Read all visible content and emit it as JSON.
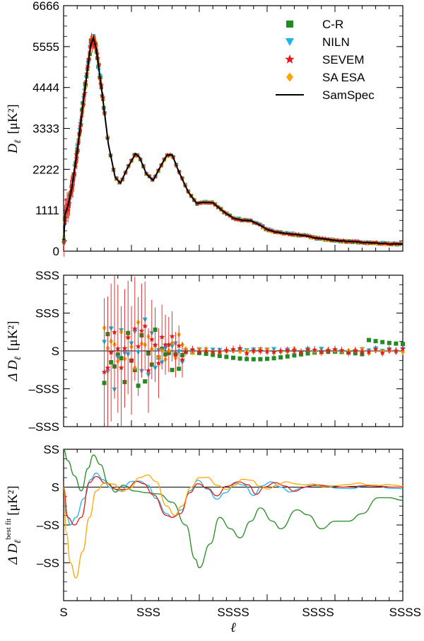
{
  "chart_data": [
    {
      "panel": "top",
      "type": "scatter",
      "ylabel_main": "D",
      "ylabel_sub": "ℓ",
      "ylabel_unit": "[μK²]",
      "x_range": [
        0,
        2500
      ],
      "ylim": [
        0,
        6666
      ],
      "y_ticks": [
        {
          "value": 0,
          "label": "0"
        },
        {
          "value": 1111,
          "label": "1111"
        },
        {
          "value": 2222,
          "label": "2222"
        },
        {
          "value": 3333,
          "label": "3333"
        },
        {
          "value": 4444,
          "label": "4444"
        },
        {
          "value": 5555,
          "label": "5555"
        },
        {
          "value": 6666,
          "label": "6666"
        }
      ],
      "legend_position": "top-right",
      "legend": [
        {
          "label": "C-R",
          "color": "#228B22",
          "marker": "square"
        },
        {
          "label": "NILN",
          "color": "#1EB4E6",
          "marker": "triangle-down"
        },
        {
          "label": "SEVEM",
          "color": "#E41A1C",
          "marker": "star"
        },
        {
          "label": "SA ESA",
          "color": "#FFA500",
          "marker": "diamond"
        },
        {
          "label": "SamSpec",
          "color": "#000000",
          "marker": "line"
        }
      ],
      "model_curve": [
        [
          2,
          300
        ],
        [
          10,
          1000
        ],
        [
          30,
          1200
        ],
        [
          60,
          1700
        ],
        [
          100,
          2700
        ],
        [
          150,
          4200
        ],
        [
          200,
          5600
        ],
        [
          220,
          5800
        ],
        [
          240,
          5500
        ],
        [
          280,
          4400
        ],
        [
          330,
          2900
        ],
        [
          380,
          2000
        ],
        [
          420,
          1850
        ],
        [
          470,
          2250
        ],
        [
          530,
          2650
        ],
        [
          560,
          2550
        ],
        [
          610,
          2100
        ],
        [
          660,
          1920
        ],
        [
          700,
          2200
        ],
        [
          760,
          2600
        ],
        [
          800,
          2620
        ],
        [
          850,
          2150
        ],
        [
          920,
          1600
        ],
        [
          980,
          1300
        ],
        [
          1030,
          1330
        ],
        [
          1100,
          1320
        ],
        [
          1170,
          1100
        ],
        [
          1250,
          900
        ],
        [
          1320,
          840
        ],
        [
          1380,
          830
        ],
        [
          1440,
          720
        ],
        [
          1500,
          590
        ],
        [
          1560,
          520
        ],
        [
          1620,
          490
        ],
        [
          1700,
          460
        ],
        [
          1780,
          420
        ],
        [
          1860,
          360
        ],
        [
          1940,
          320
        ],
        [
          2020,
          280
        ],
        [
          2100,
          270
        ],
        [
          2200,
          240
        ],
        [
          2300,
          220
        ],
        [
          2400,
          200
        ],
        [
          2500,
          190
        ]
      ]
    },
    {
      "panel": "middle",
      "type": "scatter",
      "ylabel_main": "Δ D",
      "ylabel_sub": "ℓ",
      "ylabel_unit": "[μK²]",
      "x_range": [
        0,
        2500
      ],
      "ylim": [
        -200,
        200
      ],
      "y_ticks": [
        {
          "value": 200,
          "label": "SSS"
        },
        {
          "value": 100,
          "label": "SSS"
        },
        {
          "value": 0,
          "label": "S"
        },
        {
          "value": -100,
          "label": "–SSS"
        },
        {
          "value": -200,
          "label": "–SSS"
        }
      ],
      "series": [
        {
          "color": "#228B22",
          "marker": "square",
          "offsets": [
            -0.2,
            0.1,
            -0.15,
            0.05,
            -0.12,
            0.08,
            -0.1,
            0.02,
            -0.15,
            0.03
          ]
        },
        {
          "color": "#1EB4E6",
          "marker": "triangle-down",
          "offsets": [
            0.1,
            -0.05,
            0.12,
            -0.08,
            0.06,
            -0.02,
            0.04,
            0.01,
            0.0,
            0.02
          ]
        },
        {
          "color": "#E41A1C",
          "marker": "star",
          "offsets": [
            0.05,
            0.0,
            0.08,
            -0.05,
            0.04,
            0.0,
            0.03,
            0.02,
            0.01,
            0.0
          ]
        },
        {
          "color": "#FFA500",
          "marker": "diamond",
          "offsets": [
            0.15,
            -0.1,
            0.1,
            0.02,
            0.05,
            0.01,
            0.02,
            0.03,
            0.02,
            0.01
          ]
        }
      ]
    },
    {
      "panel": "bottom",
      "type": "line",
      "ylabel_main": "Δ D",
      "ylabel_sub": "ℓ",
      "ylabel_sup": "best fit",
      "ylabel_unit": "[μK²]",
      "xlabel": "ℓ",
      "x_range": [
        0,
        2500
      ],
      "ylim": [
        -30,
        10
      ],
      "x_ticks": [
        {
          "value": 0,
          "label": "S"
        },
        {
          "value": 625,
          "label": "SSS"
        },
        {
          "value": 1250,
          "label": "SSSS"
        },
        {
          "value": 1875,
          "label": "SSSS"
        },
        {
          "value": 2500,
          "label": "SSSS"
        }
      ],
      "y_ticks": [
        {
          "value": 10,
          "label": "SS"
        },
        {
          "value": 0,
          "label": "S"
        },
        {
          "value": -10,
          "label": "–SS"
        },
        {
          "value": -20,
          "label": "–SS"
        }
      ],
      "series": [
        {
          "color": "#228B22",
          "points": [
            [
              0,
              10
            ],
            [
              30,
              7
            ],
            [
              80,
              3
            ],
            [
              130,
              -1
            ],
            [
              180,
              5
            ],
            [
              220,
              8.5
            ],
            [
              270,
              6
            ],
            [
              330,
              1
            ],
            [
              380,
              -1.3
            ],
            [
              440,
              0.5
            ],
            [
              520,
              -1
            ],
            [
              620,
              -1.5
            ],
            [
              700,
              -1.8
            ],
            [
              800,
              -4
            ],
            [
              900,
              -10
            ],
            [
              970,
              -19
            ],
            [
              1000,
              -21.3
            ],
            [
              1080,
              -15
            ],
            [
              1150,
              -8
            ],
            [
              1230,
              -11
            ],
            [
              1300,
              -13.4
            ],
            [
              1380,
              -9
            ],
            [
              1450,
              -5.5
            ],
            [
              1540,
              -9
            ],
            [
              1600,
              -11
            ],
            [
              1720,
              -6
            ],
            [
              1800,
              -7.3
            ],
            [
              1900,
              -11
            ],
            [
              2000,
              -9
            ],
            [
              2100,
              -9
            ],
            [
              2200,
              -7
            ],
            [
              2320,
              -2.8
            ],
            [
              2400,
              -2.8
            ],
            [
              2500,
              -3.5
            ]
          ]
        },
        {
          "color": "#1EB4E6",
          "points": [
            [
              0,
              0
            ],
            [
              20,
              -7
            ],
            [
              50,
              -10
            ],
            [
              90,
              -8
            ],
            [
              150,
              -3
            ],
            [
              200,
              2
            ],
            [
              240,
              3.7
            ],
            [
              290,
              2
            ],
            [
              340,
              0
            ],
            [
              420,
              -1
            ],
            [
              500,
              1.5
            ],
            [
              560,
              1.6
            ],
            [
              620,
              0.5
            ],
            [
              680,
              -3
            ],
            [
              760,
              -7
            ],
            [
              800,
              -8
            ],
            [
              870,
              -6
            ],
            [
              930,
              -1
            ],
            [
              990,
              1.8
            ],
            [
              1060,
              -0.5
            ],
            [
              1130,
              -3.2
            ],
            [
              1190,
              -1.5
            ],
            [
              1270,
              1
            ],
            [
              1330,
              0.5
            ],
            [
              1400,
              -2.2
            ],
            [
              1460,
              0.3
            ],
            [
              1530,
              1.4
            ],
            [
              1600,
              0
            ],
            [
              1670,
              -1.3
            ],
            [
              1740,
              -0.4
            ],
            [
              1820,
              0.4
            ],
            [
              1920,
              0.3
            ],
            [
              2020,
              -0.3
            ],
            [
              2130,
              -0.4
            ],
            [
              2200,
              0.2
            ],
            [
              2300,
              0.5
            ],
            [
              2400,
              -0.3
            ],
            [
              2500,
              -0.4
            ]
          ]
        },
        {
          "color": "#E41A1C",
          "points": [
            [
              0,
              0
            ],
            [
              30,
              -8
            ],
            [
              80,
              -10
            ],
            [
              130,
              -8
            ],
            [
              190,
              1.2
            ],
            [
              240,
              2.8
            ],
            [
              310,
              1
            ],
            [
              390,
              -0.6
            ],
            [
              460,
              -0.6
            ],
            [
              540,
              1.5
            ],
            [
              590,
              0.9
            ],
            [
              660,
              -2
            ],
            [
              760,
              -7.5
            ],
            [
              800,
              -8
            ],
            [
              860,
              -7
            ],
            [
              930,
              -1.5
            ],
            [
              990,
              0.9
            ],
            [
              1060,
              -0.3
            ],
            [
              1130,
              -2.3
            ],
            [
              1200,
              0.2
            ],
            [
              1290,
              1.4
            ],
            [
              1360,
              0.6
            ],
            [
              1420,
              -1.9
            ],
            [
              1480,
              0
            ],
            [
              1560,
              1.2
            ],
            [
              1630,
              0.3
            ],
            [
              1700,
              -1.1
            ],
            [
              1780,
              0
            ],
            [
              1870,
              0.6
            ],
            [
              1960,
              0.3
            ],
            [
              2060,
              0
            ],
            [
              2140,
              0.2
            ],
            [
              2230,
              0.4
            ],
            [
              2330,
              0.2
            ],
            [
              2420,
              0
            ],
            [
              2500,
              0
            ]
          ]
        },
        {
          "color": "#FFA500",
          "points": [
            [
              0,
              0
            ],
            [
              20,
              -12
            ],
            [
              50,
              -20
            ],
            [
              90,
              -24
            ],
            [
              140,
              -17
            ],
            [
              190,
              -8
            ],
            [
              240,
              -1
            ],
            [
              300,
              1
            ],
            [
              370,
              0.8
            ],
            [
              430,
              -1.2
            ],
            [
              490,
              -0.2
            ],
            [
              560,
              2.5
            ],
            [
              620,
              3.2
            ],
            [
              680,
              1.5
            ],
            [
              760,
              -5
            ],
            [
              820,
              -7.5
            ],
            [
              870,
              -5
            ],
            [
              940,
              0
            ],
            [
              1000,
              2.5
            ],
            [
              1060,
              2.6
            ],
            [
              1130,
              0.5
            ],
            [
              1200,
              -0.6
            ],
            [
              1260,
              0.5
            ],
            [
              1320,
              2.1
            ],
            [
              1390,
              1.8
            ],
            [
              1440,
              0.3
            ],
            [
              1510,
              -0.5
            ],
            [
              1570,
              0.5
            ],
            [
              1640,
              1.4
            ],
            [
              1720,
              0.8
            ],
            [
              1780,
              0.6
            ],
            [
              1840,
              0.8
            ],
            [
              1920,
              0.1
            ],
            [
              2000,
              0.4
            ],
            [
              2100,
              0.7
            ],
            [
              2180,
              1.1
            ],
            [
              2240,
              0.6
            ],
            [
              2320,
              0.4
            ],
            [
              2380,
              0.7
            ],
            [
              2440,
              0.5
            ],
            [
              2500,
              0.2
            ]
          ]
        }
      ]
    }
  ]
}
